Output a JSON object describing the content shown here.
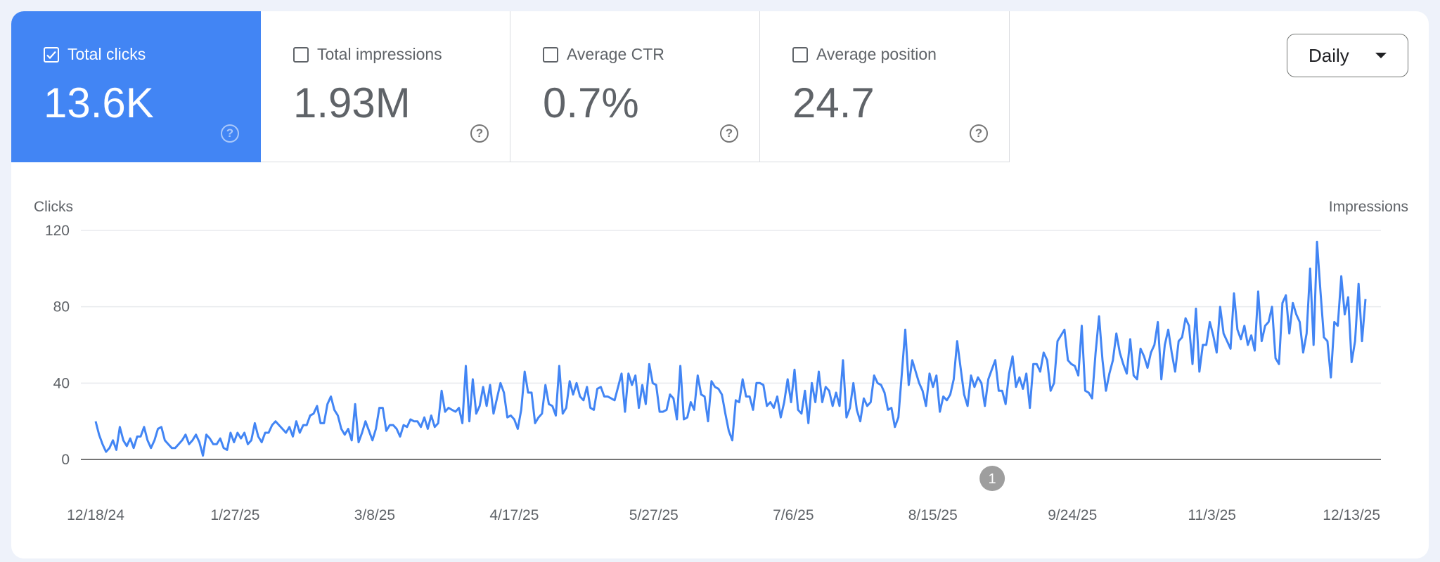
{
  "metrics": [
    {
      "label": "Total clicks",
      "value": "13.6K",
      "checked": true
    },
    {
      "label": "Total impressions",
      "value": "1.93M",
      "checked": false
    },
    {
      "label": "Average CTR",
      "value": "0.7%",
      "checked": false
    },
    {
      "label": "Average position",
      "value": "24.7",
      "checked": false
    }
  ],
  "help_icon": "?",
  "granularity": {
    "selected": "Daily"
  },
  "colors": {
    "accent": "#4285f4",
    "line": "#4285f4",
    "annotation": "#9e9e9e"
  },
  "chart_data": {
    "type": "line",
    "ylabel_left": "Clicks",
    "ylabel_right": "Impressions",
    "ylim": [
      0,
      120
    ],
    "yticks": [
      "0",
      "40",
      "80",
      "120"
    ],
    "xticks": [
      "12/18/24",
      "1/27/25",
      "3/8/25",
      "4/17/25",
      "5/27/25",
      "7/6/25",
      "8/15/25",
      "9/24/25",
      "11/3/25",
      "12/13/25"
    ],
    "x_start": "12/18/24",
    "x_end": "12/17/25",
    "grid": true,
    "annotation": {
      "label": "1",
      "date": "9/1/25"
    },
    "series": [
      {
        "values": [
          20,
          13,
          8,
          4,
          6,
          10,
          5,
          17,
          10,
          7,
          11,
          6,
          12,
          12,
          17,
          10,
          6,
          10,
          16,
          17,
          10,
          8,
          6,
          6,
          8,
          10,
          13,
          8,
          10,
          13,
          9,
          2,
          13,
          11,
          8,
          8,
          11,
          6,
          5,
          14,
          9,
          14,
          11,
          14,
          8,
          10,
          19,
          12,
          9,
          14,
          14,
          18,
          20,
          18,
          16,
          14,
          17,
          12,
          20,
          14,
          18,
          18,
          23,
          24,
          28,
          19,
          19,
          29,
          33,
          26,
          23,
          16,
          13,
          16,
          10,
          29,
          9,
          14,
          20,
          15,
          10,
          16,
          27,
          27,
          15,
          18,
          18,
          16,
          12,
          18,
          17,
          21,
          20,
          20,
          17,
          22,
          16,
          23,
          17,
          19,
          36,
          25,
          27,
          26,
          25,
          27,
          19,
          49,
          20,
          42,
          24,
          28,
          38,
          28,
          39,
          24,
          32,
          40,
          35,
          22,
          23,
          21,
          16,
          26,
          46,
          35,
          35,
          19,
          22,
          24,
          39,
          29,
          28,
          23,
          49,
          24,
          27,
          41,
          34,
          40,
          33,
          31,
          38,
          27,
          26,
          37,
          38,
          33,
          33,
          32,
          31,
          38,
          45,
          25,
          45,
          39,
          44,
          27,
          39,
          29,
          50,
          40,
          39,
          25,
          25,
          26,
          34,
          32,
          21,
          49,
          21,
          22,
          30,
          26,
          44,
          34,
          33,
          20,
          41,
          38,
          37,
          34,
          24,
          15,
          10,
          31,
          30,
          42,
          33,
          33,
          26,
          40,
          40,
          39,
          28,
          30,
          27,
          33,
          22,
          30,
          42,
          30,
          47,
          26,
          24,
          36,
          19,
          40,
          30,
          46,
          30,
          38,
          36,
          28,
          35,
          28,
          52,
          22,
          27,
          40,
          26,
          20,
          32,
          28,
          30,
          44,
          40,
          39,
          35,
          26,
          27,
          17,
          22,
          45,
          68,
          39,
          52,
          46,
          40,
          36,
          28,
          45,
          38,
          44,
          25,
          33,
          31,
          34,
          42,
          62,
          48,
          34,
          28,
          44,
          38,
          43,
          40,
          28,
          42,
          47,
          52,
          36,
          36,
          29,
          45,
          54,
          38,
          43,
          37,
          45,
          27,
          50,
          50,
          46,
          56,
          52,
          36,
          40,
          62,
          65,
          68,
          52,
          50,
          49,
          44,
          70,
          36,
          35,
          32,
          56,
          75,
          52,
          36,
          45,
          52,
          66,
          56,
          50,
          45,
          63,
          44,
          42,
          58,
          54,
          48,
          56,
          60,
          72,
          42,
          60,
          68,
          56,
          46,
          62,
          64,
          74,
          70,
          50,
          79,
          46,
          60,
          60,
          72,
          65,
          56,
          80,
          66,
          62,
          58,
          87,
          68,
          63,
          70,
          60,
          65,
          57,
          88,
          62,
          70,
          72,
          80,
          53,
          50,
          82,
          86,
          66,
          82,
          76,
          72,
          56,
          66,
          100,
          60,
          114,
          88,
          64,
          62,
          43,
          72,
          70,
          96,
          76,
          85,
          51,
          62,
          92,
          62,
          84
        ]
      }
    ]
  }
}
